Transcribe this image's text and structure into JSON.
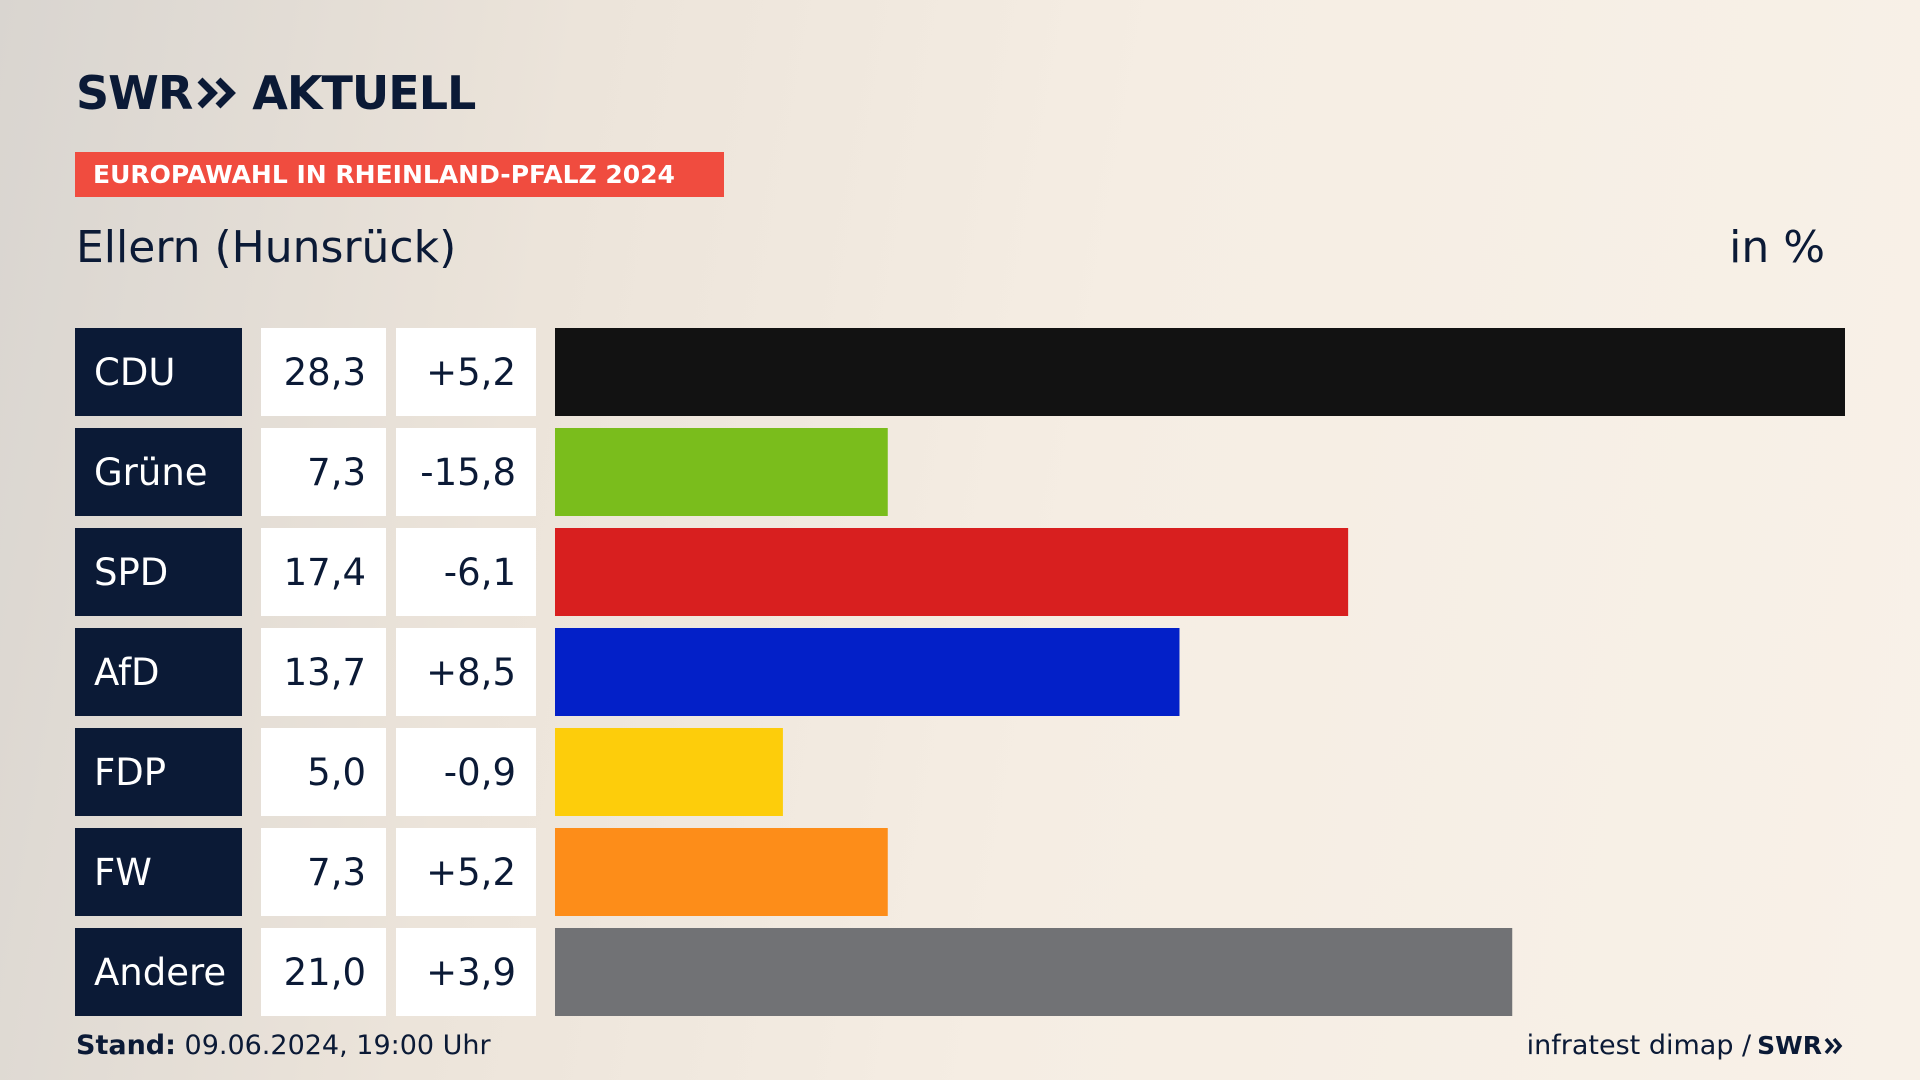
{
  "brand": {
    "logo_left": "SWR",
    "logo_right": "AKTUELL",
    "colors": {
      "navy": "#0b1a36",
      "banner": "#f04c3f"
    }
  },
  "banner": {
    "text": "EUROPAWAHL IN RHEINLAND-PFALZ 2024"
  },
  "header": {
    "location": "Ellern (Hunsrück)",
    "unit": "in %"
  },
  "footer": {
    "stand_label": "Stand:",
    "stand_value": "09.06.2024, 19:00 Uhr",
    "source": "infratest dimap /",
    "source_logo": "SWR"
  },
  "chart_data": {
    "type": "bar",
    "orientation": "horizontal",
    "categories": [
      "CDU",
      "Grüne",
      "SPD",
      "AfD",
      "FDP",
      "FW",
      "Andere"
    ],
    "series": [
      {
        "values": [
          28.3,
          7.3,
          17.4,
          13.7,
          5.0,
          7.3,
          21.0
        ]
      }
    ],
    "values_label": [
      "28,3",
      "7,3",
      "17,4",
      "13,7",
      "5,0",
      "7,3",
      "21,0"
    ],
    "changes": [
      "+5,2",
      "-15,8",
      "-6,1",
      "+8,5",
      "-0,9",
      "+5,2",
      "+3,9"
    ],
    "colors": [
      "#121212",
      "#7abd1c",
      "#d81f1f",
      "#0320c8",
      "#fdcd0b",
      "#fd8d19",
      "#717275"
    ],
    "xlim": [
      0,
      28.3
    ],
    "grid": false,
    "legend": "none"
  }
}
